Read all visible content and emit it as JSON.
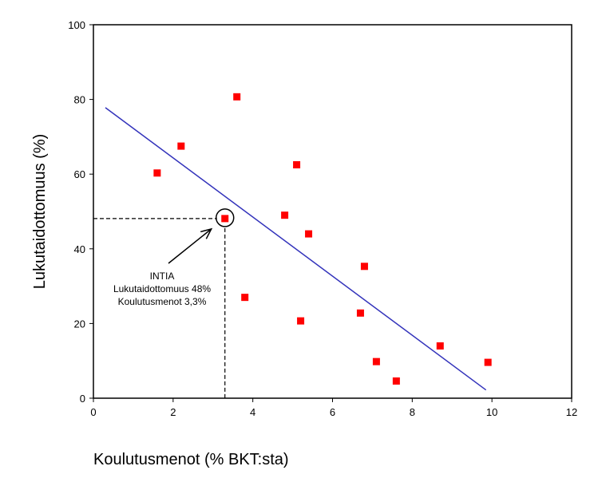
{
  "chart_data": {
    "type": "scatter",
    "xlabel": "Koulutusmenot (% BKT:sta)",
    "ylabel": "Lukutaidottomuus (%)",
    "xlim": [
      0,
      12
    ],
    "ylim": [
      0,
      100
    ],
    "xticks": [
      "0",
      "2",
      "4",
      "6",
      "8",
      "10",
      "12"
    ],
    "yticks": [
      "0",
      "20",
      "40",
      "60",
      "80",
      "100"
    ],
    "grid": false,
    "points": [
      {
        "x": 1.6,
        "y": 60.3
      },
      {
        "x": 2.2,
        "y": 67.5
      },
      {
        "x": 3.3,
        "y": 48.1
      },
      {
        "x": 3.6,
        "y": 80.7
      },
      {
        "x": 3.8,
        "y": 27.0
      },
      {
        "x": 4.8,
        "y": 49.0
      },
      {
        "x": 5.1,
        "y": 62.5
      },
      {
        "x": 5.2,
        "y": 20.7
      },
      {
        "x": 5.4,
        "y": 44.0
      },
      {
        "x": 6.7,
        "y": 22.8
      },
      {
        "x": 6.8,
        "y": 35.3
      },
      {
        "x": 7.1,
        "y": 9.8
      },
      {
        "x": 7.6,
        "y": 4.6
      },
      {
        "x": 8.7,
        "y": 14.0
      },
      {
        "x": 9.9,
        "y": 9.6
      }
    ],
    "trendline": {
      "x": [
        0.3,
        9.85
      ],
      "y": [
        77.8,
        2.2
      ]
    },
    "highlight": {
      "x": 3.3,
      "y": 48.1
    },
    "annotation": {
      "lines": [
        "INTIA",
        "Lukutaidottomuus 48%",
        "Koulutusmenot 3,3%"
      ]
    },
    "colors": {
      "points": "#ff0000",
      "trendline": "#3333bb",
      "axis": "#000000"
    }
  }
}
